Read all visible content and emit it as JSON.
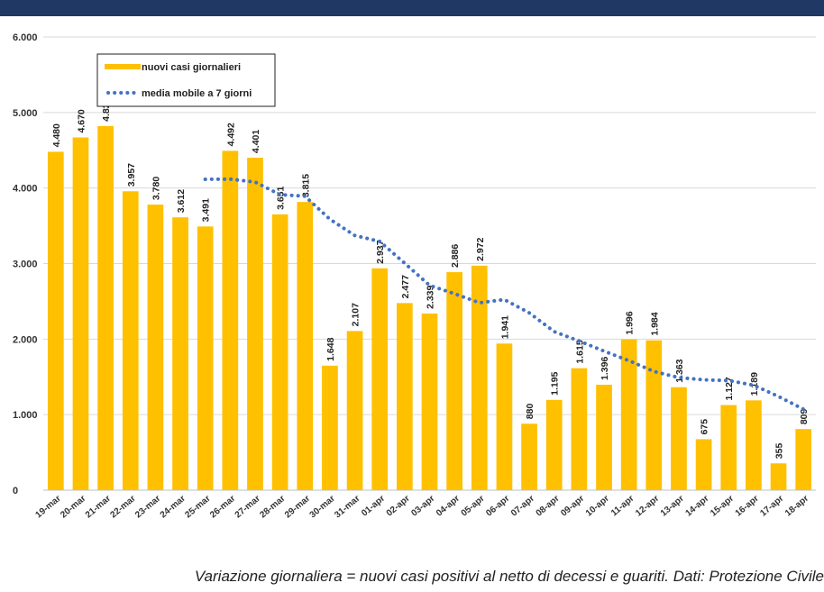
{
  "chart_data": {
    "type": "bar",
    "categories": [
      "19-mar",
      "20-mar",
      "21-mar",
      "22-mar",
      "23-mar",
      "24-mar",
      "25-mar",
      "26-mar",
      "27-mar",
      "28-mar",
      "29-mar",
      "30-mar",
      "31-mar",
      "01-apr",
      "02-apr",
      "03-apr",
      "04-apr",
      "05-apr",
      "06-apr",
      "07-apr",
      "08-apr",
      "09-apr",
      "10-apr",
      "11-apr",
      "12-apr",
      "13-apr",
      "14-apr",
      "15-apr",
      "16-apr",
      "17-apr",
      "18-apr"
    ],
    "series": [
      {
        "name": "nuovi casi giornalieri",
        "type": "bar",
        "color": "#ffc000",
        "values": [
          4480,
          4670,
          4821,
          3957,
          3780,
          3612,
          3491,
          4492,
          4401,
          3651,
          3815,
          1648,
          2107,
          2937,
          2477,
          2339,
          2886,
          2972,
          1941,
          880,
          1195,
          1615,
          1396,
          1996,
          1984,
          1363,
          675,
          1127,
          1189,
          355,
          809
        ],
        "value_labels": [
          "4.480",
          "4.670",
          "4.821",
          "3.957",
          "3.780",
          "3.612",
          "3.491",
          "4.492",
          "4.401",
          "3.651",
          "3.815",
          "1.648",
          "2.107",
          "2.937",
          "2.477",
          "2.339",
          "2.886",
          "2.972",
          "1.941",
          "880",
          "1.195",
          "1.615",
          "1.396",
          "1.996",
          "1.984",
          "1.363",
          "675",
          "1.127",
          "1.189",
          "355",
          "809"
        ]
      },
      {
        "name": "media mobile a 7 giorni",
        "type": "line",
        "color": "#4472c4",
        "values": [
          null,
          null,
          null,
          null,
          null,
          null,
          4116,
          4118,
          4079,
          3912,
          3892,
          3587,
          3372,
          3293,
          3005,
          2711,
          2601,
          2481,
          2523,
          2347,
          2099,
          1975,
          1841,
          1714,
          1572,
          1490,
          1461,
          1451,
          1390,
          1241,
          1072
        ]
      }
    ],
    "ylim": [
      0,
      6000
    ],
    "yticks": [
      {
        "value": 0,
        "label": "0"
      },
      {
        "value": 1000,
        "label": "1.000"
      },
      {
        "value": 2000,
        "label": "2.000"
      },
      {
        "value": 3000,
        "label": "3.000"
      },
      {
        "value": 4000,
        "label": "4.000"
      },
      {
        "value": 5000,
        "label": "5.000"
      },
      {
        "value": 6000,
        "label": "6.000"
      }
    ],
    "grid": true
  },
  "caption": "Variazione giornaliera = nuovi casi positivi al netto di decessi e guariti. Dati: Protezione Civile"
}
